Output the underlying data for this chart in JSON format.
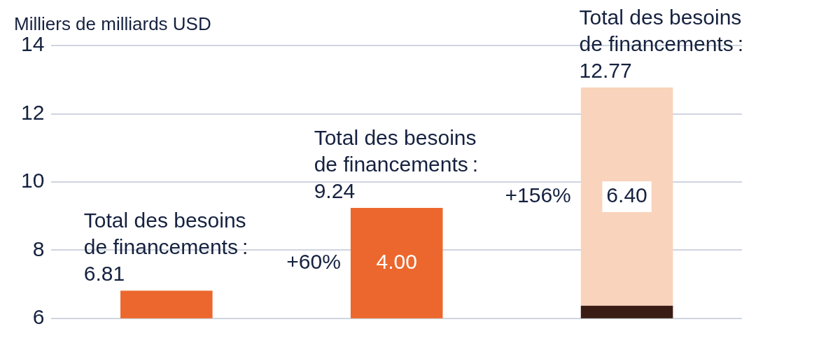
{
  "chart_data": {
    "type": "bar",
    "ylabel": "Milliers de milliards USD",
    "categories": [
      null,
      null,
      null
    ],
    "series": [
      {
        "colors": [
          "#ec672d",
          "#ec672d",
          "#3a1c14"
        ],
        "values": [
          6.81,
          null,
          6.37
        ]
      },
      {
        "colors": [
          "#ec672d",
          "#ec672d",
          "#f9d3bb"
        ],
        "base": [
          null,
          5.24,
          6.37
        ],
        "values": [
          null,
          4.0,
          6.4
        ],
        "value_labels": [
          null,
          "4.00",
          "6.40"
        ]
      }
    ],
    "annotations": [
      {
        "text": "Total des besoins de financements : 6.81",
        "y": 6.81
      },
      {
        "text": "Total des besoins de financements : 9.24",
        "y": 9.24
      },
      {
        "text": "Total des besoins de financements : 12.77",
        "y": 12.77
      },
      "+60%",
      "+156%"
    ],
    "ylim": [
      6,
      14
    ],
    "yticks": [
      6,
      8,
      10,
      12,
      14
    ],
    "grid": "y",
    "legend": false
  }
}
